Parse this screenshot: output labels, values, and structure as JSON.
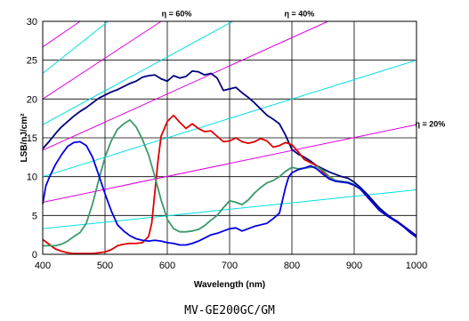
{
  "chart_data": {
    "type": "line",
    "title": "",
    "xlabel": "Wavelength (nm)",
    "ylabel": "LSB/nJ/cm²",
    "caption": "MV-GE200GC/GM",
    "xlim": [
      400,
      1000
    ],
    "ylim": [
      0,
      30
    ],
    "xticks": [
      400,
      500,
      600,
      700,
      800,
      900,
      1000
    ],
    "yticks": [
      0,
      5,
      10,
      15,
      20,
      25,
      30
    ],
    "grid": true,
    "legend": "none",
    "annotations": [
      {
        "text": "η = 60%",
        "x": 615,
        "y": 31
      },
      {
        "text": "η = 40%",
        "x": 812,
        "y": 31
      },
      {
        "text": "η = 20%",
        "x": 1022,
        "y": 16.8
      }
    ],
    "efficiency_lines": [
      {
        "color": "#e000e0",
        "points": [
          [
            400,
            26.7
          ],
          [
            460,
            30.0
          ]
        ]
      },
      {
        "color": "#00e0e0",
        "points": [
          [
            400,
            23.3
          ],
          [
            505,
            30.0
          ]
        ]
      },
      {
        "color": "#e000e0",
        "points": [
          [
            400,
            20.0
          ],
          [
            590,
            30.0
          ]
        ]
      },
      {
        "color": "#00e0e0",
        "points": [
          [
            400,
            16.7
          ],
          [
            705,
            30.0
          ]
        ]
      },
      {
        "color": "#e000e0",
        "points": [
          [
            400,
            13.4
          ],
          [
            858,
            30.0
          ]
        ]
      },
      {
        "color": "#00e0e0",
        "points": [
          [
            400,
            10.0
          ],
          [
            1000,
            25.0
          ]
        ]
      },
      {
        "color": "#e000e0",
        "points": [
          [
            400,
            6.7
          ],
          [
            1000,
            16.7
          ]
        ]
      },
      {
        "color": "#00e0e0",
        "points": [
          [
            400,
            3.3
          ],
          [
            1000,
            8.3
          ]
        ]
      }
    ],
    "series": [
      {
        "color": "#000080",
        "x": [
          400,
          410,
          420,
          430,
          440,
          450,
          460,
          470,
          480,
          490,
          500,
          510,
          520,
          530,
          540,
          550,
          560,
          570,
          580,
          590,
          600,
          610,
          620,
          630,
          640,
          650,
          660,
          670,
          680,
          690,
          700,
          710,
          720,
          730,
          740,
          750,
          760,
          770,
          780,
          790,
          800,
          810,
          820,
          830,
          840,
          850,
          860,
          870,
          880,
          890,
          900,
          910,
          920,
          930,
          940,
          950,
          960,
          970,
          980,
          990,
          1000
        ],
        "values": [
          13.6,
          14.5,
          15.5,
          16.4,
          17.1,
          17.8,
          18.4,
          18.9,
          19.5,
          20.1,
          20.5,
          20.9,
          21.2,
          21.6,
          22.0,
          22.3,
          22.8,
          23.0,
          23.1,
          22.6,
          22.3,
          23.0,
          22.7,
          22.9,
          23.6,
          23.5,
          23.1,
          23.3,
          22.7,
          21.1,
          21.3,
          21.5,
          20.8,
          20.2,
          19.5,
          18.7,
          17.9,
          17.4,
          16.8,
          15.3,
          13.5,
          12.9,
          12.5,
          12.0,
          11.4,
          11.0,
          10.6,
          10.3,
          10.0,
          9.8,
          9.3,
          8.6,
          7.8,
          6.9,
          6.0,
          5.3,
          4.7,
          4.2,
          3.6,
          3.0,
          2.4
        ]
      },
      {
        "color": "#e00000",
        "x": [
          400,
          410,
          420,
          430,
          440,
          450,
          460,
          470,
          480,
          490,
          500,
          510,
          520,
          530,
          540,
          550,
          560,
          570,
          575,
          580,
          585,
          590,
          600,
          610,
          620,
          630,
          640,
          650,
          660,
          670,
          680,
          690,
          700,
          710,
          720,
          730,
          740,
          750,
          760,
          770,
          780,
          790,
          800,
          810,
          820,
          830,
          840,
          850,
          860,
          870,
          880,
          890,
          900,
          910,
          920,
          930,
          940,
          950,
          960,
          970,
          980,
          990,
          1000
        ],
        "values": [
          1.9,
          1.3,
          0.7,
          0.4,
          0.2,
          0.1,
          0.1,
          0.1,
          0.1,
          0.2,
          0.3,
          0.6,
          1.1,
          1.3,
          1.4,
          1.4,
          1.5,
          2.3,
          4.0,
          8.0,
          12.0,
          15.2,
          17.1,
          17.9,
          17.0,
          16.2,
          16.8,
          16.2,
          15.8,
          15.9,
          15.2,
          14.5,
          14.6,
          15.0,
          14.5,
          14.3,
          14.5,
          14.9,
          14.6,
          13.8,
          14.0,
          14.4,
          14.1,
          13.2,
          12.2,
          11.8,
          11.4,
          10.6,
          9.9,
          9.5,
          9.3,
          9.2,
          8.9,
          8.4,
          7.5,
          6.6,
          5.7,
          5.1,
          4.6,
          4.1,
          3.5,
          2.8,
          2.2
        ]
      },
      {
        "color": "#3a9a6a",
        "x": [
          400,
          410,
          420,
          430,
          440,
          450,
          460,
          470,
          480,
          490,
          500,
          510,
          520,
          530,
          540,
          550,
          560,
          570,
          580,
          590,
          600,
          610,
          620,
          630,
          640,
          650,
          660,
          670,
          680,
          690,
          700,
          710,
          720,
          730,
          740,
          750,
          760,
          770,
          780,
          790,
          800,
          810,
          820,
          830,
          840,
          850,
          860,
          870,
          880,
          890,
          900,
          910,
          920,
          930,
          940,
          950,
          960,
          970,
          980,
          990,
          1000
        ],
        "values": [
          1.1,
          1.1,
          1.1,
          1.3,
          1.7,
          2.3,
          2.8,
          4.0,
          6.5,
          9.6,
          12.5,
          14.6,
          16.1,
          16.8,
          17.3,
          16.4,
          14.8,
          12.8,
          10.0,
          7.0,
          4.5,
          3.3,
          2.9,
          2.9,
          3.0,
          3.2,
          3.7,
          4.4,
          5.0,
          6.0,
          6.9,
          6.7,
          6.4,
          7.0,
          7.9,
          8.6,
          9.2,
          9.5,
          10.0,
          10.7,
          11.2,
          11.0,
          11.1,
          11.2,
          11.3,
          10.8,
          10.0,
          9.5,
          9.4,
          9.3,
          9.0,
          8.4,
          7.5,
          6.6,
          5.7,
          5.1,
          4.6,
          4.1,
          3.5,
          2.8,
          2.2
        ]
      },
      {
        "color": "#0000e0",
        "x": [
          400,
          405,
          410,
          420,
          430,
          440,
          450,
          460,
          470,
          480,
          490,
          500,
          510,
          520,
          530,
          540,
          550,
          560,
          570,
          580,
          590,
          600,
          610,
          620,
          630,
          640,
          650,
          660,
          670,
          680,
          690,
          700,
          710,
          720,
          730,
          740,
          750,
          760,
          770,
          780,
          785,
          790,
          795,
          800,
          810,
          820,
          830,
          840,
          850,
          860,
          870,
          880,
          890,
          900,
          910,
          920,
          930,
          940,
          950,
          960,
          970,
          980,
          990,
          1000
        ],
        "values": [
          6.5,
          8.8,
          9.8,
          11.5,
          12.8,
          13.9,
          14.4,
          14.5,
          14.0,
          12.5,
          10.2,
          7.8,
          5.6,
          3.8,
          3.0,
          2.4,
          2.0,
          1.8,
          1.7,
          1.8,
          1.7,
          1.5,
          1.4,
          1.2,
          1.2,
          1.4,
          1.7,
          2.1,
          2.5,
          2.7,
          3.0,
          3.3,
          3.4,
          3.0,
          3.3,
          3.6,
          3.8,
          4.0,
          4.6,
          5.3,
          7.0,
          8.7,
          10.0,
          10.5,
          10.9,
          11.1,
          11.4,
          11.0,
          10.3,
          9.7,
          9.4,
          9.3,
          9.2,
          8.9,
          8.4,
          7.5,
          6.6,
          5.7,
          5.1,
          4.6,
          4.1,
          3.5,
          2.8,
          2.2
        ]
      }
    ]
  }
}
